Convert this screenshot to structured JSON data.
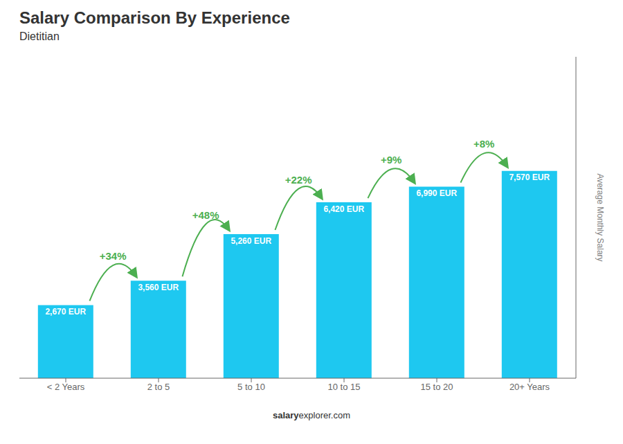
{
  "chart_data": {
    "type": "bar",
    "title": "Salary Comparison By Experience",
    "subtitle": "Dietitian",
    "y_label": "Average Monthly Salary",
    "categories": [
      "< 2 Years",
      "2 to 5",
      "5 to 10",
      "10 to 15",
      "15 to 20",
      "20+ Years"
    ],
    "values": [
      2670,
      3560,
      5260,
      6420,
      6990,
      7570
    ],
    "value_labels": [
      "2,670 EUR",
      "3,560 EUR",
      "5,260 EUR",
      "6,420 EUR",
      "6,990 EUR",
      "7,570 EUR"
    ],
    "data_labels": true,
    "annotations": [
      "+34%",
      "+48%",
      "+22%",
      "+9%",
      "+8%",
      "salary",
      "explorer.com"
    ],
    "color": "#1EC8F0",
    "ylim": [
      0,
      11733.5
    ],
    "grid": false,
    "tick_labels": "x"
  }
}
